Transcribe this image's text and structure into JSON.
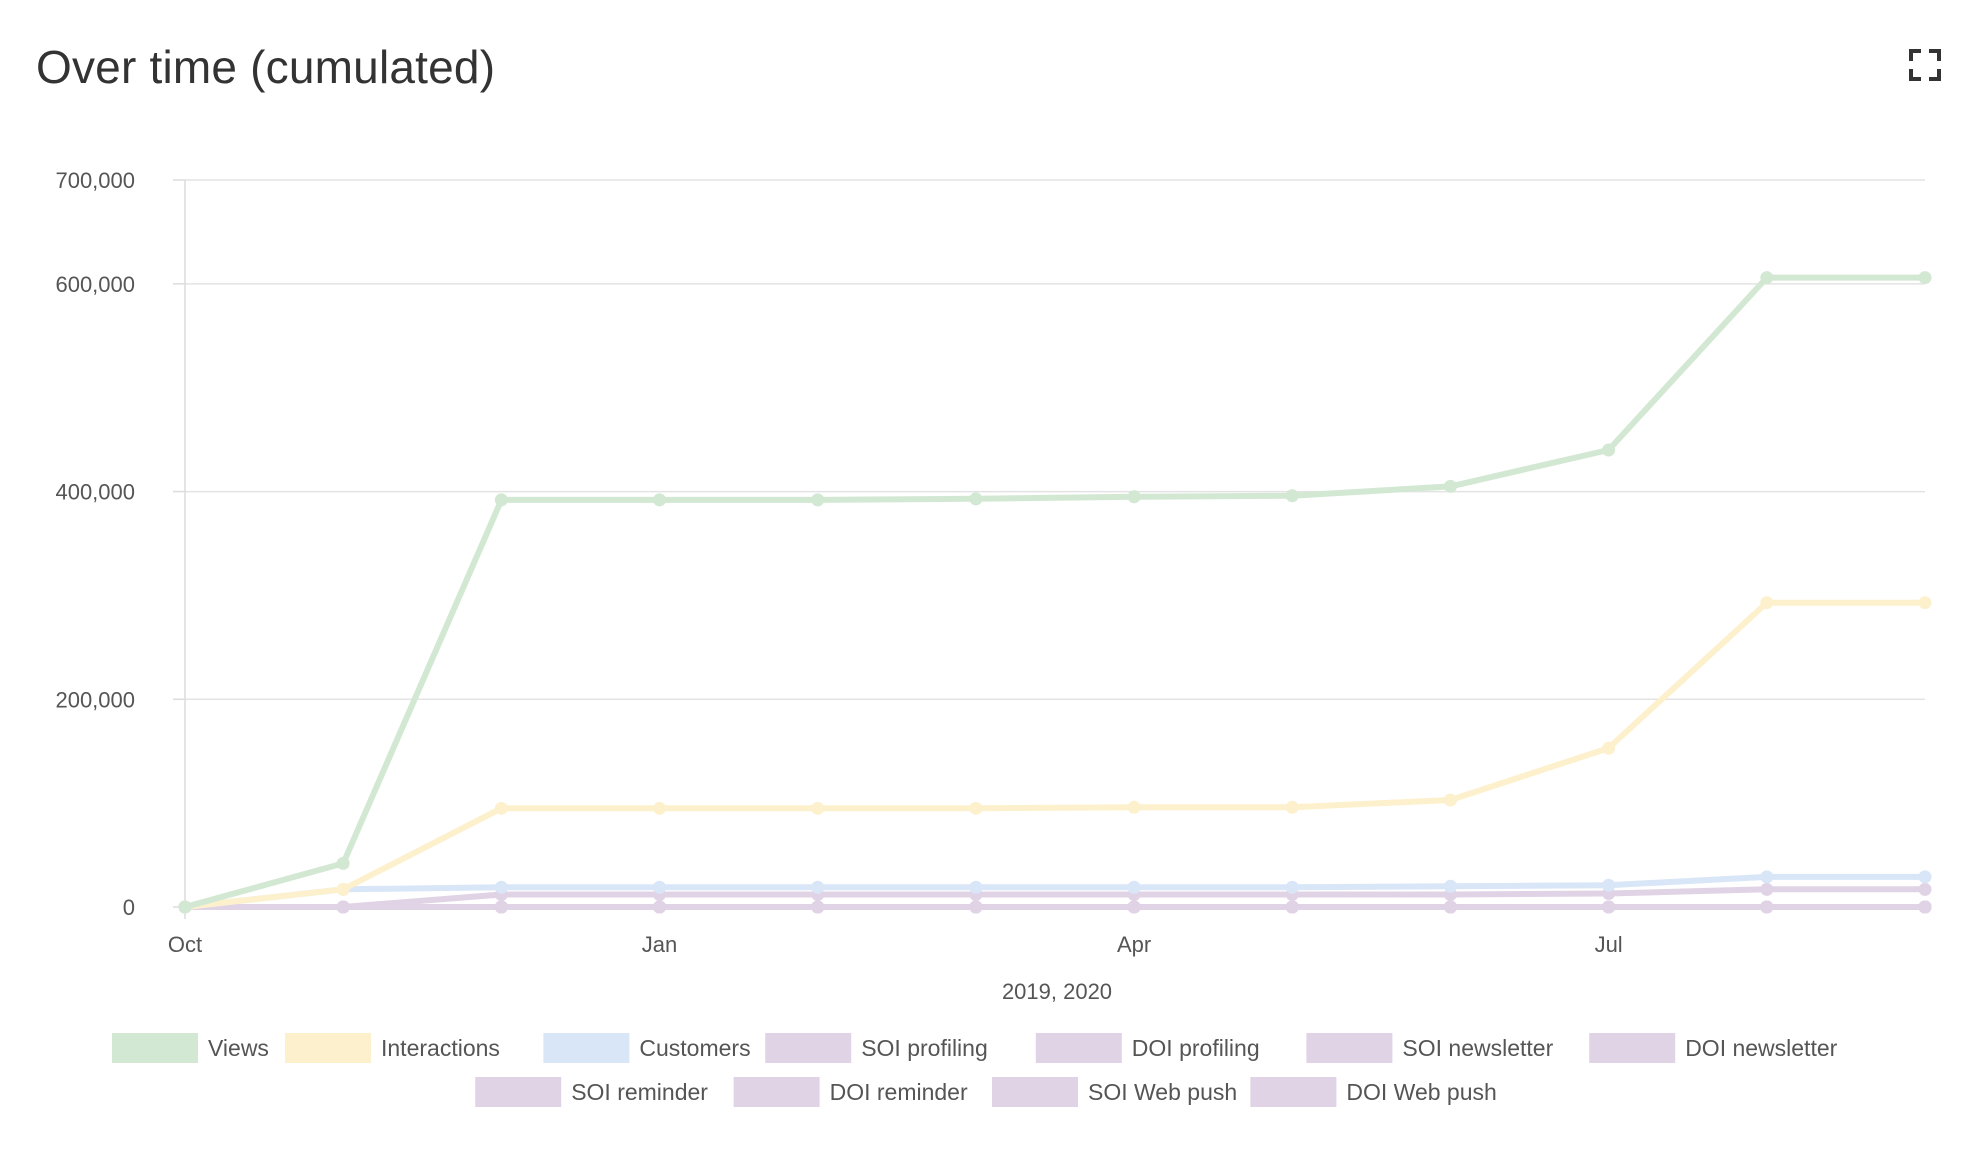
{
  "header": {
    "title": "Over time (cumulated)",
    "expand_icon": "fullscreen-expand-icon"
  },
  "colors": {
    "Views": "#d3e8d3",
    "Interactions": "#fdf0cc",
    "Customers": "#d8e6f8",
    "purple": "#e1d3e6",
    "grid": "#e3e3e3",
    "axis": "#dcdcdc"
  },
  "chart_data": {
    "type": "line",
    "title": "Over time (cumulated)",
    "xlabel": "2019, 2020",
    "ylabel": "",
    "x": [
      "2019-10",
      "2019-11",
      "2019-12",
      "2020-01",
      "2020-02",
      "2020-03",
      "2020-04",
      "2020-05",
      "2020-06",
      "2020-07",
      "2020-08",
      "2020-09"
    ],
    "x_ticks": [
      {
        "index": 0,
        "label": "Oct"
      },
      {
        "index": 3,
        "label": "Jan"
      },
      {
        "index": 6,
        "label": "Apr"
      },
      {
        "index": 9,
        "label": "Jul"
      }
    ],
    "ylim": [
      0,
      700000
    ],
    "y_ticks": [
      0,
      200000,
      400000,
      600000,
      700000
    ],
    "y_tick_labels": [
      "0",
      "200,000",
      "400,000",
      "600,000",
      "700,000"
    ],
    "grid": true,
    "legend_position": "bottom",
    "series": [
      {
        "name": "Views",
        "color": "#d3e8d3",
        "values": [
          0,
          42000,
          392000,
          392000,
          392000,
          393000,
          395000,
          396000,
          405000,
          440000,
          606000,
          606000
        ]
      },
      {
        "name": "Interactions",
        "color": "#fdf0cc",
        "values": [
          0,
          17000,
          95000,
          95000,
          95000,
          95000,
          96000,
          96000,
          103000,
          153000,
          293000,
          293000
        ]
      },
      {
        "name": "Customers",
        "color": "#d8e6f8",
        "values": [
          0,
          17000,
          19000,
          19000,
          19000,
          19000,
          19000,
          19000,
          20000,
          21000,
          29000,
          29000
        ]
      },
      {
        "name": "SOI profiling",
        "color": "#e1d3e6",
        "values": [
          0,
          0,
          12000,
          12000,
          12000,
          12000,
          12000,
          12000,
          12000,
          13000,
          17000,
          17000
        ]
      },
      {
        "name": "DOI profiling",
        "color": "#e1d3e6",
        "values": [
          0,
          0,
          0,
          0,
          0,
          0,
          0,
          0,
          0,
          0,
          0,
          0
        ]
      },
      {
        "name": "SOI newsletter",
        "color": "#e1d3e6",
        "values": [
          0,
          0,
          0,
          0,
          0,
          0,
          0,
          0,
          0,
          0,
          0,
          0
        ]
      },
      {
        "name": "DOI newsletter",
        "color": "#e1d3e6",
        "values": [
          0,
          0,
          0,
          0,
          0,
          0,
          0,
          0,
          0,
          0,
          0,
          0
        ]
      },
      {
        "name": "SOI reminder",
        "color": "#e1d3e6",
        "values": [
          0,
          0,
          0,
          0,
          0,
          0,
          0,
          0,
          0,
          0,
          0,
          0
        ]
      },
      {
        "name": "DOI reminder",
        "color": "#e1d3e6",
        "values": [
          0,
          0,
          0,
          0,
          0,
          0,
          0,
          0,
          0,
          0,
          0,
          0
        ]
      },
      {
        "name": "SOI Web push",
        "color": "#e1d3e6",
        "values": [
          0,
          0,
          0,
          0,
          0,
          0,
          0,
          0,
          0,
          0,
          0,
          0
        ]
      },
      {
        "name": "DOI Web push",
        "color": "#e1d3e6",
        "values": [
          0,
          0,
          0,
          0,
          0,
          0,
          0,
          0,
          0,
          0,
          0,
          0
        ]
      }
    ]
  }
}
